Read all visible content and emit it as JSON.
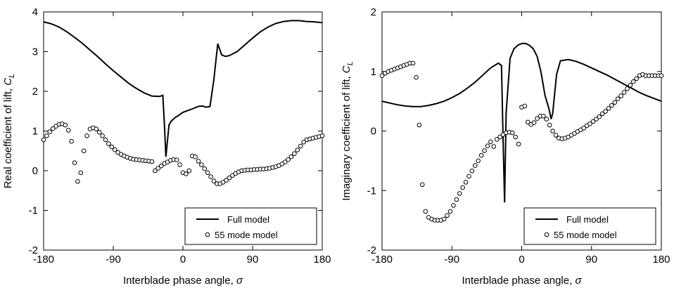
{
  "chart_data": [
    {
      "type": "line",
      "xlabel": "Interblade phase angle, σ",
      "ylabel": "Real coefficient of lift, C_L",
      "xlim": [
        -180,
        180
      ],
      "ylim": [
        -2,
        4
      ],
      "xticks": [
        "-180",
        "-90",
        "0",
        "90",
        "180"
      ],
      "yticks": [
        "-2",
        "-1",
        "0",
        "1",
        "2",
        "3",
        "4"
      ],
      "grid": false,
      "legend_position": "bottom-right",
      "series": [
        {
          "name": "Full model",
          "style": "line",
          "x": [
            -180,
            -170,
            -160,
            -150,
            -140,
            -130,
            -120,
            -110,
            -100,
            -90,
            -80,
            -70,
            -60,
            -50,
            -40,
            -30,
            -26,
            -24,
            -22,
            -18,
            -15,
            -10,
            -5,
            0,
            10,
            20,
            25,
            30,
            35,
            40,
            45,
            50,
            55,
            60,
            70,
            80,
            90,
            100,
            110,
            120,
            130,
            140,
            150,
            160,
            170,
            180
          ],
          "y": [
            3.75,
            3.7,
            3.62,
            3.5,
            3.36,
            3.21,
            3.04,
            2.87,
            2.69,
            2.52,
            2.36,
            2.2,
            2.07,
            1.96,
            1.88,
            1.87,
            1.9,
            1.2,
            0.35,
            1.15,
            1.25,
            1.34,
            1.4,
            1.47,
            1.54,
            1.62,
            1.63,
            1.6,
            1.62,
            2.3,
            3.2,
            2.92,
            2.88,
            2.9,
            3.0,
            3.17,
            3.34,
            3.5,
            3.62,
            3.71,
            3.76,
            3.78,
            3.78,
            3.76,
            3.75,
            3.73
          ]
        },
        {
          "name": "55 mode model",
          "style": "markers",
          "x": [
            -180,
            -176,
            -172,
            -168,
            -164,
            -160,
            -156,
            -152,
            -148,
            -144,
            -140,
            -136,
            -132,
            -128,
            -124,
            -120,
            -116,
            -112,
            -108,
            -104,
            -100,
            -96,
            -92,
            -88,
            -84,
            -80,
            -76,
            -72,
            -68,
            -64,
            -60,
            -56,
            -52,
            -48,
            -44,
            -40,
            -36,
            -32,
            -28,
            -24,
            -20,
            -16,
            -12,
            -8,
            -4,
            0,
            4,
            8,
            12,
            16,
            20,
            24,
            28,
            32,
            36,
            40,
            44,
            48,
            52,
            56,
            60,
            64,
            68,
            72,
            76,
            80,
            84,
            88,
            92,
            96,
            100,
            104,
            108,
            112,
            116,
            120,
            124,
            128,
            132,
            136,
            140,
            144,
            148,
            152,
            156,
            160,
            164,
            168,
            172,
            176,
            180
          ],
          "y": [
            0.78,
            0.88,
            0.98,
            1.06,
            1.12,
            1.17,
            1.18,
            1.15,
            1.02,
            0.74,
            0.2,
            -0.27,
            -0.05,
            0.5,
            0.88,
            1.05,
            1.08,
            1.05,
            0.97,
            0.88,
            0.78,
            0.68,
            0.6,
            0.53,
            0.46,
            0.41,
            0.37,
            0.34,
            0.31,
            0.29,
            0.28,
            0.27,
            0.26,
            0.25,
            0.24,
            0.23,
            0.0,
            0.06,
            0.12,
            0.18,
            0.22,
            0.26,
            0.28,
            0.27,
            0.15,
            -0.05,
            -0.08,
            0.0,
            0.37,
            0.35,
            0.24,
            0.15,
            0.05,
            -0.05,
            -0.15,
            -0.26,
            -0.33,
            -0.33,
            -0.29,
            -0.24,
            -0.18,
            -0.12,
            -0.07,
            -0.03,
            0.0,
            0.01,
            0.02,
            0.02,
            0.03,
            0.03,
            0.04,
            0.04,
            0.05,
            0.06,
            0.08,
            0.1,
            0.13,
            0.17,
            0.22,
            0.28,
            0.35,
            0.43,
            0.52,
            0.62,
            0.72,
            0.78,
            0.8,
            0.82,
            0.84,
            0.86,
            0.88
          ]
        }
      ]
    },
    {
      "type": "line",
      "xlabel": "Interblade phase angle, σ",
      "ylabel": "Imaginary coefficient of lift, C_L",
      "xlim": [
        -180,
        180
      ],
      "ylim": [
        -2,
        2
      ],
      "xticks": [
        "-180",
        "-90",
        "0",
        "90",
        "180"
      ],
      "yticks": [
        "-2",
        "-1",
        "0",
        "1",
        "2"
      ],
      "grid": false,
      "legend_position": "bottom-right",
      "series": [
        {
          "name": "Full model",
          "style": "line",
          "x": [
            -180,
            -170,
            -160,
            -150,
            -140,
            -130,
            -120,
            -110,
            -100,
            -90,
            -80,
            -70,
            -60,
            -50,
            -40,
            -30,
            -26,
            -24,
            -22,
            -20,
            -15,
            -10,
            -5,
            0,
            5,
            10,
            15,
            20,
            25,
            30,
            35,
            38,
            40,
            45,
            50,
            60,
            70,
            80,
            90,
            100,
            110,
            120,
            130,
            140,
            150,
            160,
            170,
            180
          ],
          "y": [
            0.5,
            0.47,
            0.44,
            0.42,
            0.41,
            0.41,
            0.43,
            0.46,
            0.5,
            0.56,
            0.63,
            0.72,
            0.82,
            0.94,
            1.06,
            1.14,
            1.1,
            -0.1,
            -1.2,
            0.3,
            1.22,
            1.38,
            1.44,
            1.47,
            1.47,
            1.44,
            1.38,
            1.25,
            0.98,
            0.6,
            0.38,
            0.2,
            0.3,
            0.95,
            1.18,
            1.2,
            1.17,
            1.12,
            1.06,
            1.0,
            0.94,
            0.87,
            0.8,
            0.73,
            0.66,
            0.6,
            0.55,
            0.5
          ]
        },
        {
          "name": "55 mode model",
          "style": "markers",
          "x": [
            -180,
            -176,
            -172,
            -168,
            -164,
            -160,
            -156,
            -152,
            -148,
            -144,
            -140,
            -136,
            -132,
            -128,
            -124,
            -120,
            -116,
            -112,
            -108,
            -104,
            -100,
            -96,
            -92,
            -88,
            -84,
            -80,
            -76,
            -72,
            -68,
            -64,
            -60,
            -56,
            -52,
            -48,
            -44,
            -40,
            -36,
            -32,
            -28,
            -24,
            -20,
            -16,
            -12,
            -8,
            -4,
            0,
            4,
            8,
            12,
            16,
            20,
            24,
            28,
            32,
            36,
            40,
            44,
            48,
            52,
            56,
            60,
            64,
            68,
            72,
            76,
            80,
            84,
            88,
            92,
            96,
            100,
            104,
            108,
            112,
            116,
            120,
            124,
            128,
            132,
            136,
            140,
            144,
            148,
            152,
            156,
            160,
            164,
            168,
            172,
            176,
            180
          ],
          "y": [
            0.93,
            0.97,
            1.0,
            1.02,
            1.04,
            1.06,
            1.08,
            1.1,
            1.12,
            1.14,
            1.14,
            0.9,
            0.1,
            -0.9,
            -1.35,
            -1.45,
            -1.48,
            -1.5,
            -1.5,
            -1.5,
            -1.48,
            -1.42,
            -1.35,
            -1.25,
            -1.15,
            -1.05,
            -0.95,
            -0.86,
            -0.76,
            -0.67,
            -0.58,
            -0.5,
            -0.41,
            -0.33,
            -0.25,
            -0.18,
            -0.26,
            -0.14,
            -0.1,
            -0.06,
            -0.03,
            -0.02,
            -0.03,
            -0.1,
            -0.22,
            0.4,
            0.42,
            0.15,
            0.11,
            0.14,
            0.21,
            0.25,
            0.25,
            0.2,
            0.1,
            0.0,
            -0.07,
            -0.12,
            -0.13,
            -0.12,
            -0.1,
            -0.07,
            -0.04,
            -0.01,
            0.02,
            0.05,
            0.09,
            0.12,
            0.16,
            0.2,
            0.24,
            0.29,
            0.33,
            0.38,
            0.43,
            0.48,
            0.54,
            0.59,
            0.65,
            0.71,
            0.77,
            0.83,
            0.88,
            0.93,
            0.95,
            0.93,
            0.93,
            0.93,
            0.93,
            0.93,
            0.93
          ]
        }
      ]
    }
  ]
}
